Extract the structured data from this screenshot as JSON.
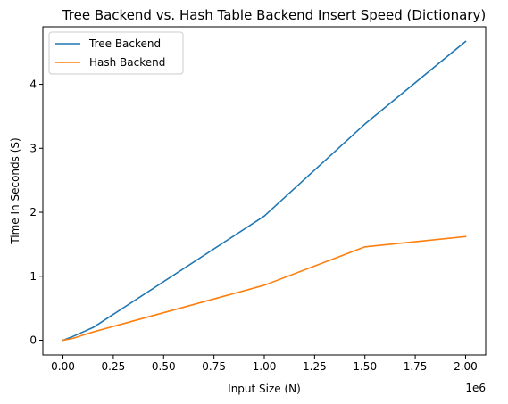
{
  "chart_data": {
    "type": "line",
    "title": "Tree Backend vs. Hash Table Backend Insert Speed (Dictionary)",
    "xlabel": "Input Size (N)",
    "ylabel": "Time In Seconds (S)",
    "x_offset_label": "1e6",
    "x_scale": 1000000,
    "xlim": [
      -100000,
      2100000
    ],
    "ylim": [
      -0.23,
      4.9
    ],
    "x_ticks": [
      0,
      250000,
      500000,
      750000,
      1000000,
      1250000,
      1500000,
      1750000,
      2000000
    ],
    "x_tick_labels": [
      "0.00",
      "0.25",
      "0.50",
      "0.75",
      "1.00",
      "1.25",
      "1.50",
      "1.75",
      "2.00"
    ],
    "y_ticks": [
      0,
      1,
      2,
      3,
      4
    ],
    "y_tick_labels": [
      "0",
      "1",
      "2",
      "3",
      "4"
    ],
    "grid": false,
    "legend_position": "top-left",
    "series": [
      {
        "name": "Tree Backend",
        "color": "#1f77b4",
        "points": [
          [
            0,
            0.0
          ],
          [
            10000,
            0.01
          ],
          [
            50000,
            0.06
          ],
          [
            100000,
            0.13
          ],
          [
            150000,
            0.2
          ],
          [
            1000000,
            1.94
          ],
          [
            1500000,
            3.38
          ],
          [
            2000000,
            4.67
          ]
        ]
      },
      {
        "name": "Hash Backend",
        "color": "#ff7f0e",
        "points": [
          [
            0,
            0.0
          ],
          [
            10000,
            0.005
          ],
          [
            50000,
            0.03
          ],
          [
            100000,
            0.08
          ],
          [
            150000,
            0.13
          ],
          [
            1000000,
            0.86
          ],
          [
            1500000,
            1.46
          ],
          [
            2000000,
            1.62
          ]
        ]
      }
    ]
  }
}
